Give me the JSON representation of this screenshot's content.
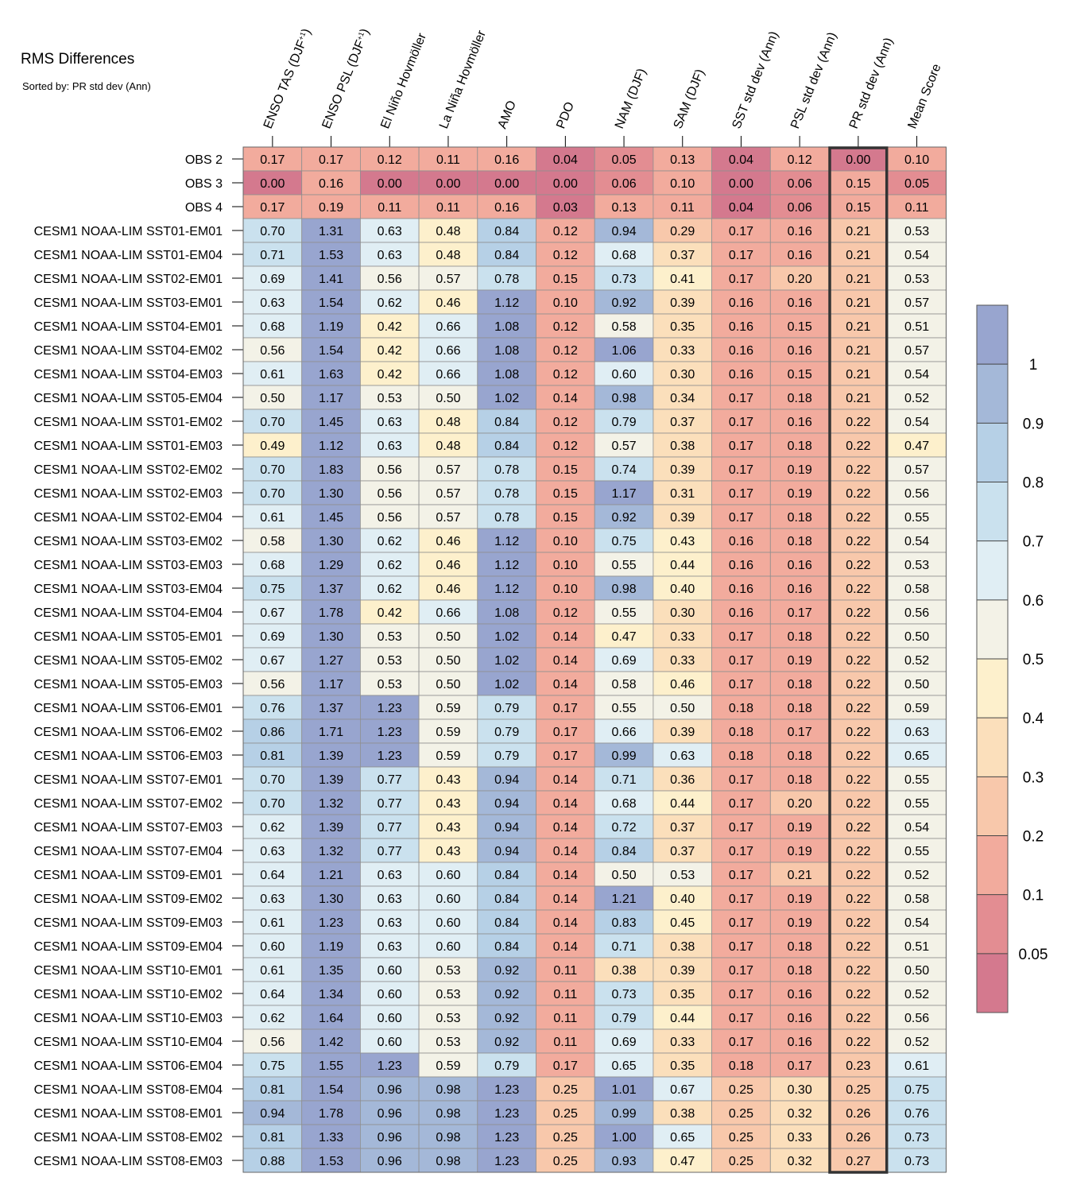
{
  "chart_data": {
    "type": "heatmap",
    "title": "RMS Differences",
    "subtitle": "Sorted by: PR std dev (Ann)",
    "columns": [
      {
        "label": "ENSO TAS (DJF",
        "sup": "+1",
        "close": ")"
      },
      {
        "label": "ENSO PSL (DJF",
        "sup": "+1",
        "close": ")"
      },
      {
        "label": "El Niño Hovmöller"
      },
      {
        "label": "La Niña Hovmöller"
      },
      {
        "label": "AMO"
      },
      {
        "label": "PDO"
      },
      {
        "label": "NAM (DJF)"
      },
      {
        "label": "SAM (DJF)"
      },
      {
        "label": "SST std dev (Ann)"
      },
      {
        "label": "PSL std dev (Ann)"
      },
      {
        "label": "PR std dev (Ann)"
      },
      {
        "label": "Mean Score"
      }
    ],
    "highlight_column": 10,
    "rows": [
      "OBS 2",
      "OBS 3",
      "OBS 4",
      "CESM1 NOAA-LIM SST01-EM01",
      "CESM1 NOAA-LIM SST01-EM04",
      "CESM1 NOAA-LIM SST02-EM01",
      "CESM1 NOAA-LIM SST03-EM01",
      "CESM1 NOAA-LIM SST04-EM01",
      "CESM1 NOAA-LIM SST04-EM02",
      "CESM1 NOAA-LIM SST04-EM03",
      "CESM1 NOAA-LIM SST05-EM04",
      "CESM1 NOAA-LIM SST01-EM02",
      "CESM1 NOAA-LIM SST01-EM03",
      "CESM1 NOAA-LIM SST02-EM02",
      "CESM1 NOAA-LIM SST02-EM03",
      "CESM1 NOAA-LIM SST02-EM04",
      "CESM1 NOAA-LIM SST03-EM02",
      "CESM1 NOAA-LIM SST03-EM03",
      "CESM1 NOAA-LIM SST03-EM04",
      "CESM1 NOAA-LIM SST04-EM04",
      "CESM1 NOAA-LIM SST05-EM01",
      "CESM1 NOAA-LIM SST05-EM02",
      "CESM1 NOAA-LIM SST05-EM03",
      "CESM1 NOAA-LIM SST06-EM01",
      "CESM1 NOAA-LIM SST06-EM02",
      "CESM1 NOAA-LIM SST06-EM03",
      "CESM1 NOAA-LIM SST07-EM01",
      "CESM1 NOAA-LIM SST07-EM02",
      "CESM1 NOAA-LIM SST07-EM03",
      "CESM1 NOAA-LIM SST07-EM04",
      "CESM1 NOAA-LIM SST09-EM01",
      "CESM1 NOAA-LIM SST09-EM02",
      "CESM1 NOAA-LIM SST09-EM03",
      "CESM1 NOAA-LIM SST09-EM04",
      "CESM1 NOAA-LIM SST10-EM01",
      "CESM1 NOAA-LIM SST10-EM02",
      "CESM1 NOAA-LIM SST10-EM03",
      "CESM1 NOAA-LIM SST10-EM04",
      "CESM1 NOAA-LIM SST06-EM04",
      "CESM1 NOAA-LIM SST08-EM04",
      "CESM1 NOAA-LIM SST08-EM01",
      "CESM1 NOAA-LIM SST08-EM02",
      "CESM1 NOAA-LIM SST08-EM03"
    ],
    "values": [
      [
        "0.17",
        "0.17",
        "0.12",
        "0.11",
        "0.16",
        "0.04",
        "0.05",
        "0.13",
        "0.04",
        "0.12",
        "0.00",
        "0.10"
      ],
      [
        "0.00",
        "0.16",
        "0.00",
        "0.00",
        "0.00",
        "0.00",
        "0.06",
        "0.10",
        "0.00",
        "0.06",
        "0.15",
        "0.05"
      ],
      [
        "0.17",
        "0.19",
        "0.11",
        "0.11",
        "0.16",
        "0.03",
        "0.13",
        "0.11",
        "0.04",
        "0.06",
        "0.15",
        "0.11"
      ],
      [
        "0.70",
        "1.31",
        "0.63",
        "0.48",
        "0.84",
        "0.12",
        "0.94",
        "0.29",
        "0.17",
        "0.16",
        "0.21",
        "0.53"
      ],
      [
        "0.71",
        "1.53",
        "0.63",
        "0.48",
        "0.84",
        "0.12",
        "0.68",
        "0.37",
        "0.17",
        "0.16",
        "0.21",
        "0.54"
      ],
      [
        "0.69",
        "1.41",
        "0.56",
        "0.57",
        "0.78",
        "0.15",
        "0.73",
        "0.41",
        "0.17",
        "0.20",
        "0.21",
        "0.53"
      ],
      [
        "0.63",
        "1.54",
        "0.62",
        "0.46",
        "1.12",
        "0.10",
        "0.92",
        "0.39",
        "0.16",
        "0.16",
        "0.21",
        "0.57"
      ],
      [
        "0.68",
        "1.19",
        "0.42",
        "0.66",
        "1.08",
        "0.12",
        "0.58",
        "0.35",
        "0.16",
        "0.15",
        "0.21",
        "0.51"
      ],
      [
        "0.56",
        "1.54",
        "0.42",
        "0.66",
        "1.08",
        "0.12",
        "1.06",
        "0.33",
        "0.16",
        "0.16",
        "0.21",
        "0.57"
      ],
      [
        "0.61",
        "1.63",
        "0.42",
        "0.66",
        "1.08",
        "0.12",
        "0.60",
        "0.30",
        "0.16",
        "0.15",
        "0.21",
        "0.54"
      ],
      [
        "0.50",
        "1.17",
        "0.53",
        "0.50",
        "1.02",
        "0.14",
        "0.98",
        "0.34",
        "0.17",
        "0.18",
        "0.21",
        "0.52"
      ],
      [
        "0.70",
        "1.45",
        "0.63",
        "0.48",
        "0.84",
        "0.12",
        "0.79",
        "0.37",
        "0.17",
        "0.16",
        "0.22",
        "0.54"
      ],
      [
        "0.49",
        "1.12",
        "0.63",
        "0.48",
        "0.84",
        "0.12",
        "0.57",
        "0.38",
        "0.17",
        "0.18",
        "0.22",
        "0.47"
      ],
      [
        "0.70",
        "1.83",
        "0.56",
        "0.57",
        "0.78",
        "0.15",
        "0.74",
        "0.39",
        "0.17",
        "0.19",
        "0.22",
        "0.57"
      ],
      [
        "0.70",
        "1.30",
        "0.56",
        "0.57",
        "0.78",
        "0.15",
        "1.17",
        "0.31",
        "0.17",
        "0.19",
        "0.22",
        "0.56"
      ],
      [
        "0.61",
        "1.45",
        "0.56",
        "0.57",
        "0.78",
        "0.15",
        "0.92",
        "0.39",
        "0.17",
        "0.18",
        "0.22",
        "0.55"
      ],
      [
        "0.58",
        "1.30",
        "0.62",
        "0.46",
        "1.12",
        "0.10",
        "0.75",
        "0.43",
        "0.16",
        "0.18",
        "0.22",
        "0.54"
      ],
      [
        "0.68",
        "1.29",
        "0.62",
        "0.46",
        "1.12",
        "0.10",
        "0.55",
        "0.44",
        "0.16",
        "0.16",
        "0.22",
        "0.53"
      ],
      [
        "0.75",
        "1.37",
        "0.62",
        "0.46",
        "1.12",
        "0.10",
        "0.98",
        "0.40",
        "0.16",
        "0.16",
        "0.22",
        "0.58"
      ],
      [
        "0.67",
        "1.78",
        "0.42",
        "0.66",
        "1.08",
        "0.12",
        "0.55",
        "0.30",
        "0.16",
        "0.17",
        "0.22",
        "0.56"
      ],
      [
        "0.69",
        "1.30",
        "0.53",
        "0.50",
        "1.02",
        "0.14",
        "0.47",
        "0.33",
        "0.17",
        "0.18",
        "0.22",
        "0.50"
      ],
      [
        "0.67",
        "1.27",
        "0.53",
        "0.50",
        "1.02",
        "0.14",
        "0.69",
        "0.33",
        "0.17",
        "0.19",
        "0.22",
        "0.52"
      ],
      [
        "0.56",
        "1.17",
        "0.53",
        "0.50",
        "1.02",
        "0.14",
        "0.58",
        "0.46",
        "0.17",
        "0.18",
        "0.22",
        "0.50"
      ],
      [
        "0.76",
        "1.37",
        "1.23",
        "0.59",
        "0.79",
        "0.17",
        "0.55",
        "0.50",
        "0.18",
        "0.18",
        "0.22",
        "0.59"
      ],
      [
        "0.86",
        "1.71",
        "1.23",
        "0.59",
        "0.79",
        "0.17",
        "0.66",
        "0.39",
        "0.18",
        "0.17",
        "0.22",
        "0.63"
      ],
      [
        "0.81",
        "1.39",
        "1.23",
        "0.59",
        "0.79",
        "0.17",
        "0.99",
        "0.63",
        "0.18",
        "0.18",
        "0.22",
        "0.65"
      ],
      [
        "0.70",
        "1.39",
        "0.77",
        "0.43",
        "0.94",
        "0.14",
        "0.71",
        "0.36",
        "0.17",
        "0.18",
        "0.22",
        "0.55"
      ],
      [
        "0.70",
        "1.32",
        "0.77",
        "0.43",
        "0.94",
        "0.14",
        "0.68",
        "0.44",
        "0.17",
        "0.20",
        "0.22",
        "0.55"
      ],
      [
        "0.62",
        "1.39",
        "0.77",
        "0.43",
        "0.94",
        "0.14",
        "0.72",
        "0.37",
        "0.17",
        "0.19",
        "0.22",
        "0.54"
      ],
      [
        "0.63",
        "1.32",
        "0.77",
        "0.43",
        "0.94",
        "0.14",
        "0.84",
        "0.37",
        "0.17",
        "0.19",
        "0.22",
        "0.55"
      ],
      [
        "0.64",
        "1.21",
        "0.63",
        "0.60",
        "0.84",
        "0.14",
        "0.50",
        "0.53",
        "0.17",
        "0.21",
        "0.22",
        "0.52"
      ],
      [
        "0.63",
        "1.30",
        "0.63",
        "0.60",
        "0.84",
        "0.14",
        "1.21",
        "0.40",
        "0.17",
        "0.19",
        "0.22",
        "0.58"
      ],
      [
        "0.61",
        "1.23",
        "0.63",
        "0.60",
        "0.84",
        "0.14",
        "0.83",
        "0.45",
        "0.17",
        "0.19",
        "0.22",
        "0.54"
      ],
      [
        "0.60",
        "1.19",
        "0.63",
        "0.60",
        "0.84",
        "0.14",
        "0.71",
        "0.38",
        "0.17",
        "0.18",
        "0.22",
        "0.51"
      ],
      [
        "0.61",
        "1.35",
        "0.60",
        "0.53",
        "0.92",
        "0.11",
        "0.38",
        "0.39",
        "0.17",
        "0.18",
        "0.22",
        "0.50"
      ],
      [
        "0.64",
        "1.34",
        "0.60",
        "0.53",
        "0.92",
        "0.11",
        "0.73",
        "0.35",
        "0.17",
        "0.16",
        "0.22",
        "0.52"
      ],
      [
        "0.62",
        "1.64",
        "0.60",
        "0.53",
        "0.92",
        "0.11",
        "0.79",
        "0.44",
        "0.17",
        "0.16",
        "0.22",
        "0.56"
      ],
      [
        "0.56",
        "1.42",
        "0.60",
        "0.53",
        "0.92",
        "0.11",
        "0.69",
        "0.33",
        "0.17",
        "0.16",
        "0.22",
        "0.52"
      ],
      [
        "0.75",
        "1.55",
        "1.23",
        "0.59",
        "0.79",
        "0.17",
        "0.65",
        "0.35",
        "0.18",
        "0.17",
        "0.23",
        "0.61"
      ],
      [
        "0.81",
        "1.54",
        "0.96",
        "0.98",
        "1.23",
        "0.25",
        "1.01",
        "0.67",
        "0.25",
        "0.30",
        "0.25",
        "0.75"
      ],
      [
        "0.94",
        "1.78",
        "0.96",
        "0.98",
        "1.23",
        "0.25",
        "0.99",
        "0.38",
        "0.25",
        "0.32",
        "0.26",
        "0.76"
      ],
      [
        "0.81",
        "1.33",
        "0.96",
        "0.98",
        "1.23",
        "0.25",
        "1.00",
        "0.65",
        "0.25",
        "0.33",
        "0.26",
        "0.73"
      ],
      [
        "0.88",
        "1.53",
        "0.96",
        "0.98",
        "1.23",
        "0.25",
        "0.93",
        "0.47",
        "0.25",
        "0.32",
        "0.27",
        "0.73"
      ]
    ],
    "colorbar": {
      "boundaries": [
        0,
        0.05,
        0.1,
        0.2,
        0.3,
        0.4,
        0.5,
        0.6,
        0.7,
        0.8,
        0.9,
        1,
        99
      ],
      "colors": [
        "#d4798e",
        "#e38d92",
        "#f2ab9d",
        "#f8c8ab",
        "#fbdfbb",
        "#fdf0cc",
        "#f3f2e7",
        "#e0eef4",
        "#cae1ee",
        "#b6d0e6",
        "#a4b8d8",
        "#98a5cf"
      ],
      "tick_values": [
        "1",
        "0.9",
        "0.8",
        "0.7",
        "0.6",
        "0.5",
        "0.4",
        "0.3",
        "0.2",
        "0.1",
        "0.05"
      ]
    }
  }
}
